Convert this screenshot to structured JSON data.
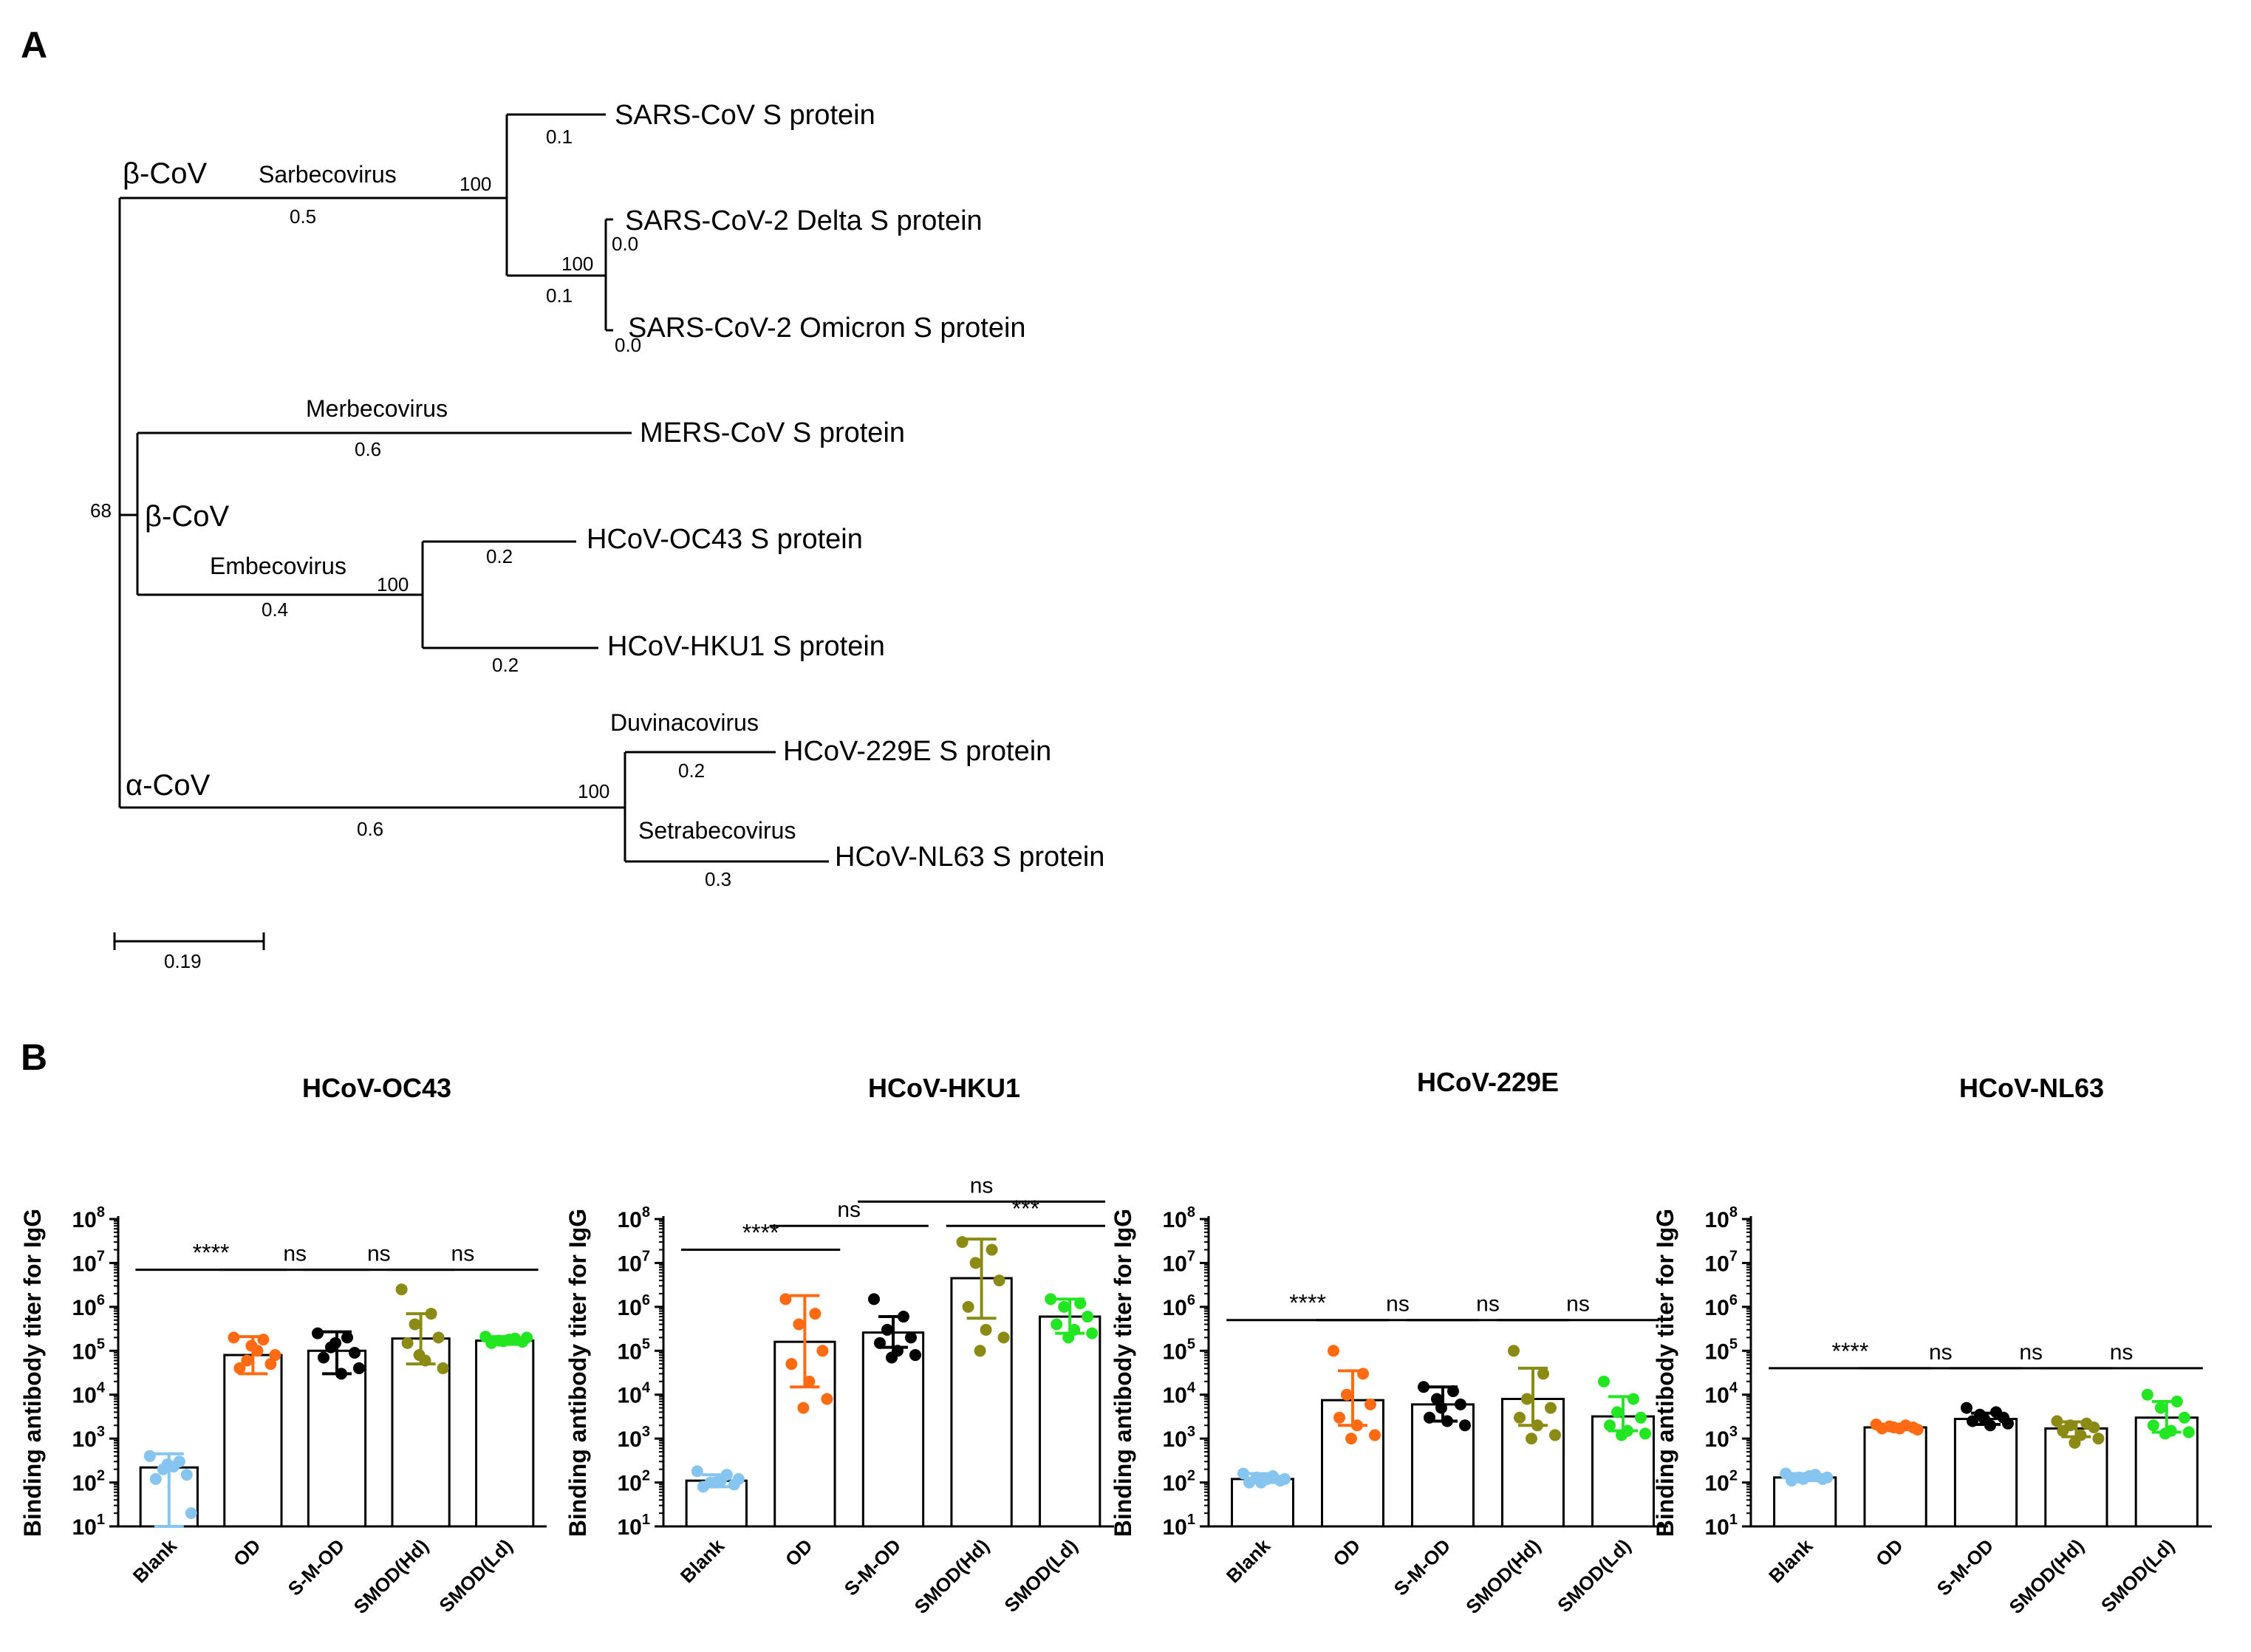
{
  "panels": {
    "a_label": "A",
    "b_label": "B"
  },
  "colors": {
    "Blank": "#86c5f0",
    "OD": "#ff6a13",
    "S-M-OD": "#000000",
    "SMOD(Hd)": "#8a8a14",
    "SMOD(Ld)": "#22e622"
  },
  "tree": {
    "leaves": {
      "sars": "SARS-CoV S protein",
      "delta": "SARS-CoV-2 Delta S protein",
      "omicron": "SARS-CoV-2 Omicron S protein",
      "mers": "MERS-CoV S protein",
      "oc43": "HCoV-OC43 S protein",
      "hku1": "HCoV-HKU1 S protein",
      "e229": "HCoV-229E S protein",
      "nl63": "HCoV-NL63 S protein"
    },
    "clades": {
      "beta1": "β-CoV",
      "beta2": "β-CoV",
      "alpha": "α-CoV",
      "sarbeco": "Sarbecovirus",
      "merbeco": "Merbecovirus",
      "embeco": "Embecovirus",
      "duvina": "Duvinacovirus",
      "setrabeco": "Setrabecovirus"
    },
    "branch_lengths": {
      "sars": "0.1",
      "sarscov2": "0.1",
      "delta": "0.0",
      "omicron": "0.0",
      "sarbeco": "0.5",
      "merbeco": "0.6",
      "embeco": "0.4",
      "oc43": "0.2",
      "hku1": "0.2",
      "alpha": "0.6",
      "e229": "0.2",
      "nl63": "0.3"
    },
    "bootstrap": {
      "sarbeco": "100",
      "sarscov2": "100",
      "root": "68",
      "embeco": "100",
      "alpha": "100"
    },
    "scale_bar": "0.19"
  },
  "chart_data": [
    {
      "type": "bar",
      "title": "HCoV-OC43",
      "ylabel": "Binding antibody titer for IgG",
      "yscale": "log10",
      "ylim": [
        10,
        100000000
      ],
      "yticks": [
        {
          "b": "10",
          "e": "1"
        },
        {
          "b": "10",
          "e": "2"
        },
        {
          "b": "10",
          "e": "3"
        },
        {
          "b": "10",
          "e": "4"
        },
        {
          "b": "10",
          "e": "5"
        },
        {
          "b": "10",
          "e": "6"
        },
        {
          "b": "10",
          "e": "7"
        },
        {
          "b": "10",
          "e": "8"
        }
      ],
      "categories": [
        "Blank",
        "OD",
        "S-M-OD",
        "SMOD(Hd)",
        "SMOD(Ld)"
      ],
      "values": [
        220,
        80000,
        100000,
        190000,
        170000
      ],
      "err_low": [
        10,
        30000,
        30000,
        50000,
        140000
      ],
      "err_high": [
        450,
        210000,
        270000,
        700000,
        210000
      ],
      "points": [
        [
          400,
          300,
          200,
          150,
          120,
          230,
          20,
          260
        ],
        [
          200000,
          180000,
          60000,
          50000,
          40000,
          100000,
          80000,
          130000
        ],
        [
          250000,
          200000,
          120000,
          90000,
          70000,
          30000,
          40000,
          150000
        ],
        [
          2500000,
          700000,
          400000,
          200000,
          150000,
          60000,
          40000,
          80000
        ],
        [
          210000,
          190000,
          170000,
          160000,
          150000,
          180000,
          200000,
          165000
        ]
      ],
      "comparisons": [
        {
          "from": 0,
          "to": 1,
          "label": "****",
          "y": 7000000
        },
        {
          "from": 1,
          "to": 2,
          "label": "ns",
          "y": 7000000
        },
        {
          "from": 2,
          "to": 3,
          "label": "ns",
          "y": 7000000
        },
        {
          "from": 3,
          "to": 4,
          "label": "ns",
          "y": 7000000
        }
      ]
    },
    {
      "type": "bar",
      "title": "HCoV-HKU1",
      "ylabel": "Binding antibody titer for IgG",
      "yscale": "log10",
      "ylim": [
        10,
        100000000
      ],
      "yticks": [
        {
          "b": "10",
          "e": "1"
        },
        {
          "b": "10",
          "e": "2"
        },
        {
          "b": "10",
          "e": "3"
        },
        {
          "b": "10",
          "e": "4"
        },
        {
          "b": "10",
          "e": "5"
        },
        {
          "b": "10",
          "e": "6"
        },
        {
          "b": "10",
          "e": "7"
        },
        {
          "b": "10",
          "e": "8"
        }
      ],
      "categories": [
        "Blank",
        "OD",
        "S-M-OD",
        "SMOD(Hd)",
        "SMOD(Ld)"
      ],
      "values": [
        110,
        160000,
        260000,
        4500000,
        600000
      ],
      "err_low": [
        80,
        15000,
        120000,
        550000,
        250000
      ],
      "err_high": [
        150,
        1800000,
        600000,
        35000000,
        1500000
      ],
      "points": [
        [
          180,
          150,
          100,
          90,
          80,
          110,
          120,
          100
        ],
        [
          1500000,
          700000,
          400000,
          100000,
          50000,
          20000,
          8000,
          5000
        ],
        [
          1500000,
          600000,
          300000,
          200000,
          150000,
          100000,
          80000,
          70000
        ],
        [
          30000000,
          20000000,
          10000000,
          4000000,
          1000000,
          300000,
          200000,
          100000
        ],
        [
          1500000,
          1200000,
          1000000,
          600000,
          400000,
          300000,
          250000,
          200000
        ]
      ],
      "comparisons": [
        {
          "from": 0,
          "to": 1,
          "label": "****",
          "y": 20000000
        },
        {
          "from": 1,
          "to": 2,
          "label": "ns",
          "y": 70000000
        },
        {
          "from": 3,
          "to": 4,
          "label": "***",
          "y": 70000000
        },
        {
          "from": 2,
          "to": 4,
          "label": "ns",
          "y": 250000000
        }
      ]
    },
    {
      "type": "bar",
      "title": "HCoV-229E",
      "ylabel": "Binding antibody titer for IgG",
      "yscale": "log10",
      "ylim": [
        10,
        100000000
      ],
      "yticks": [
        {
          "b": "10",
          "e": "1"
        },
        {
          "b": "10",
          "e": "2"
        },
        {
          "b": "10",
          "e": "3"
        },
        {
          "b": "10",
          "e": "4"
        },
        {
          "b": "10",
          "e": "5"
        },
        {
          "b": "10",
          "e": "6"
        },
        {
          "b": "10",
          "e": "7"
        },
        {
          "b": "10",
          "e": "8"
        }
      ],
      "categories": [
        "Blank",
        "OD",
        "S-M-OD",
        "SMOD(Hd)",
        "SMOD(Ld)"
      ],
      "values": [
        120,
        7500,
        6000,
        8000,
        3200
      ],
      "err_low": [
        100,
        2000,
        2500,
        2000,
        1500
      ],
      "err_high": [
        160,
        35000,
        15000,
        40000,
        9000
      ],
      "points": [
        [
          160,
          140,
          130,
          110,
          100,
          120,
          120,
          100
        ],
        [
          100000,
          30000,
          10000,
          6000,
          3000,
          2000,
          1200,
          1000
        ],
        [
          15000,
          12000,
          8000,
          6000,
          3000,
          2500,
          2000,
          5000
        ],
        [
          100000,
          30000,
          8000,
          5000,
          3000,
          2000,
          1200,
          1000
        ],
        [
          20000,
          8000,
          4000,
          3000,
          2000,
          1500,
          1300,
          1200
        ]
      ],
      "comparisons": [
        {
          "from": 0,
          "to": 1,
          "label": "****",
          "y": 500000
        },
        {
          "from": 1,
          "to": 2,
          "label": "ns",
          "y": 500000
        },
        {
          "from": 2,
          "to": 3,
          "label": "ns",
          "y": 500000
        },
        {
          "from": 3,
          "to": 4,
          "label": "ns",
          "y": 500000
        }
      ]
    },
    {
      "type": "bar",
      "title": "HCoV-NL63",
      "ylabel": "Binding antibody titer for IgG",
      "yscale": "log10",
      "ylim": [
        10,
        100000000
      ],
      "yticks": [
        {
          "b": "10",
          "e": "1"
        },
        {
          "b": "10",
          "e": "2"
        },
        {
          "b": "10",
          "e": "3"
        },
        {
          "b": "10",
          "e": "4"
        },
        {
          "b": "10",
          "e": "5"
        },
        {
          "b": "10",
          "e": "6"
        },
        {
          "b": "10",
          "e": "7"
        },
        {
          "b": "10",
          "e": "8"
        }
      ],
      "categories": [
        "Blank",
        "OD",
        "S-M-OD",
        "SMOD(Hd)",
        "SMOD(Ld)"
      ],
      "values": [
        130,
        1800,
        2800,
        1700,
        3000
      ],
      "err_low": [
        110,
        1600,
        2100,
        1100,
        1400
      ],
      "err_high": [
        160,
        2100,
        3800,
        2400,
        7000
      ],
      "points": [
        [
          160,
          150,
          130,
          120,
          110,
          140,
          130,
          120
        ],
        [
          2100,
          2000,
          1900,
          1800,
          1700,
          1700,
          1600,
          1800
        ],
        [
          5000,
          4000,
          3500,
          3000,
          2500,
          2000,
          2200,
          2800
        ],
        [
          2500,
          2200,
          2000,
          1800,
          1500,
          1200,
          1000,
          800
        ],
        [
          10000,
          7000,
          5000,
          3000,
          2000,
          1500,
          1400,
          1300
        ]
      ],
      "comparisons": [
        {
          "from": 0,
          "to": 1,
          "label": "****",
          "y": 40000
        },
        {
          "from": 1,
          "to": 2,
          "label": "ns",
          "y": 40000
        },
        {
          "from": 2,
          "to": 3,
          "label": "ns",
          "y": 40000
        },
        {
          "from": 3,
          "to": 4,
          "label": "ns",
          "y": 40000
        }
      ]
    }
  ]
}
